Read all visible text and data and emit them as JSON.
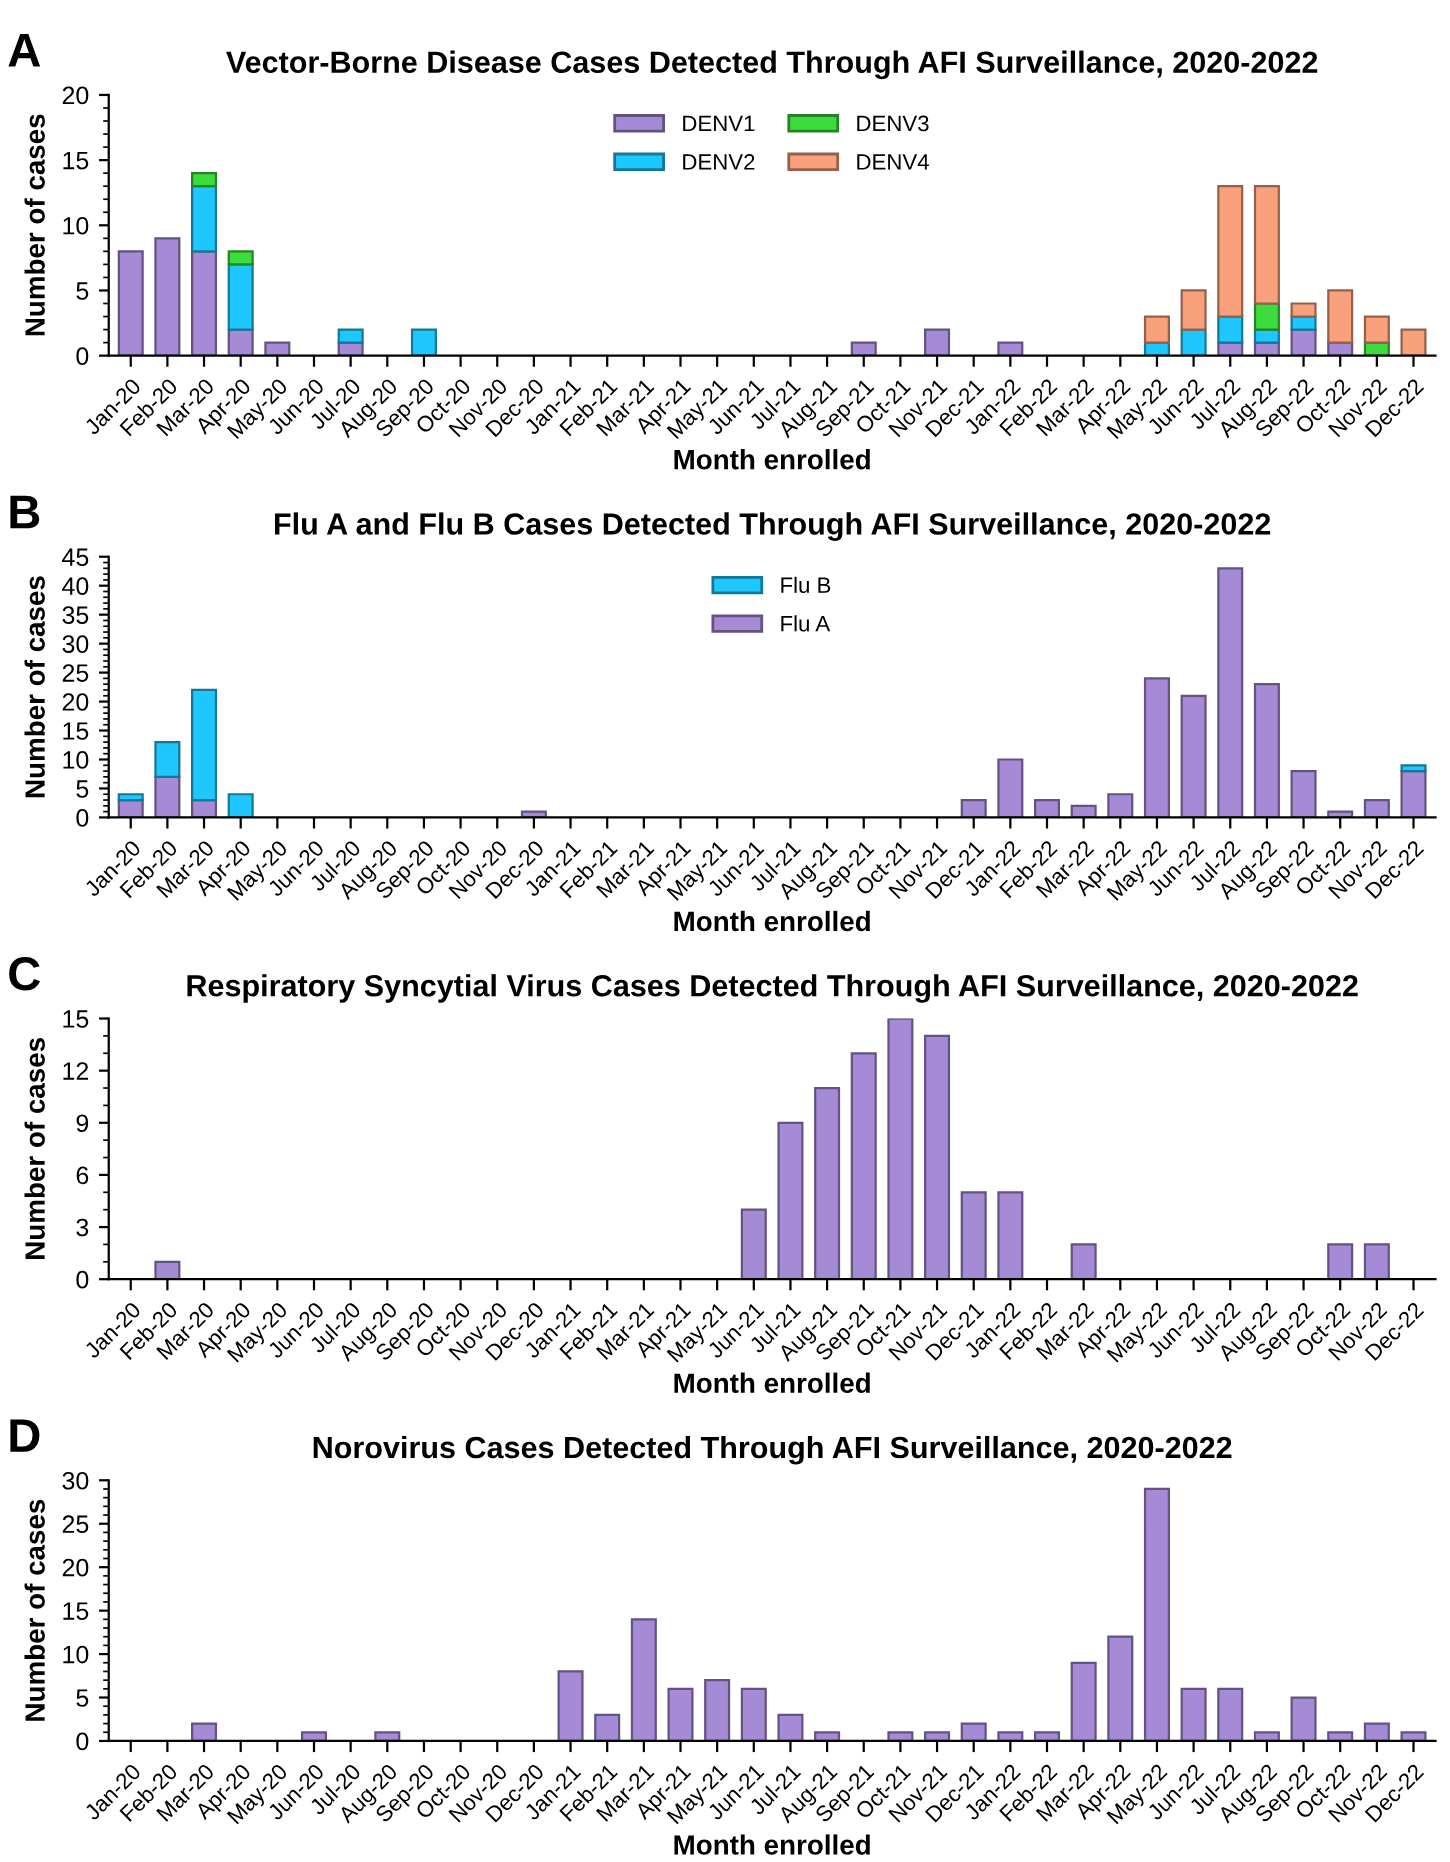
{
  "chart_data": [
    {
      "type": "bar",
      "title": "Vector-Borne Disease Cases Detected Through AFI Surveillance, 2020-2022",
      "xlabel": "Month enrolled",
      "ylabel": "Number of cases",
      "annotations": [
        "A"
      ],
      "stacked": true,
      "legend": "top",
      "grid": false,
      "categories": [
        "Jan-20",
        "Feb-20",
        "Mar-20",
        "Apr-20",
        "May-20",
        "Jun-20",
        "Jul-20",
        "Aug-20",
        "Sep-20",
        "Oct-20",
        "Nov-20",
        "Dec-20",
        "Jan-21",
        "Feb-21",
        "Mar-21",
        "Apr-21",
        "May-21",
        "Jun-21",
        "Jul-21",
        "Aug-21",
        "Sep-21",
        "Oct-21",
        "Nov-21",
        "Dec-21",
        "Jan-22",
        "Feb-22",
        "Mar-22",
        "Apr-22",
        "May-22",
        "Jun-22",
        "Jul-22",
        "Aug-22",
        "Sep-22",
        "Oct-22",
        "Nov-22",
        "Dec-22"
      ],
      "ylim": [
        0,
        20
      ],
      "yticks": [
        0,
        5,
        10,
        15,
        20
      ],
      "series": [
        {
          "name": "DENV1",
          "color": "#a58bd6",
          "values": [
            8,
            9,
            8,
            2,
            1,
            0,
            1,
            0,
            0,
            0,
            0,
            0,
            0,
            0,
            0,
            0,
            0,
            0,
            0,
            0,
            1,
            0,
            2,
            0,
            1,
            0,
            0,
            0,
            0,
            0,
            1,
            1,
            2,
            1,
            0,
            0
          ]
        },
        {
          "name": "DENV2",
          "color": "#1ec8ff",
          "values": [
            0,
            0,
            5,
            5,
            0,
            0,
            1,
            0,
            2,
            0,
            0,
            0,
            0,
            0,
            0,
            0,
            0,
            0,
            0,
            0,
            0,
            0,
            0,
            0,
            0,
            0,
            0,
            0,
            1,
            2,
            2,
            1,
            1,
            0,
            0,
            0
          ]
        },
        {
          "name": "DENV3",
          "color": "#3ddc3d",
          "values": [
            0,
            0,
            1,
            1,
            0,
            0,
            0,
            0,
            0,
            0,
            0,
            0,
            0,
            0,
            0,
            0,
            0,
            0,
            0,
            0,
            0,
            0,
            0,
            0,
            0,
            0,
            0,
            0,
            0,
            0,
            0,
            2,
            0,
            0,
            1,
            0
          ]
        },
        {
          "name": "DENV4",
          "color": "#f9a07c",
          "values": [
            0,
            0,
            0,
            0,
            0,
            0,
            0,
            0,
            0,
            0,
            0,
            0,
            0,
            0,
            0,
            0,
            0,
            0,
            0,
            0,
            0,
            0,
            0,
            0,
            0,
            0,
            0,
            0,
            2,
            3,
            10,
            9,
            1,
            4,
            2,
            2
          ]
        }
      ]
    },
    {
      "type": "bar",
      "title": "Flu A and Flu B Cases Detected Through AFI Surveillance, 2020-2022",
      "xlabel": "Month enrolled",
      "ylabel": "Number of cases",
      "annotations": [
        "B"
      ],
      "stacked": true,
      "legend": "top",
      "grid": false,
      "categories": [
        "Jan-20",
        "Feb-20",
        "Mar-20",
        "Apr-20",
        "May-20",
        "Jun-20",
        "Jul-20",
        "Aug-20",
        "Sep-20",
        "Oct-20",
        "Nov-20",
        "Dec-20",
        "Jan-21",
        "Feb-21",
        "Mar-21",
        "Apr-21",
        "May-21",
        "Jun-21",
        "Jul-21",
        "Aug-21",
        "Sep-21",
        "Oct-21",
        "Nov-21",
        "Dec-21",
        "Jan-22",
        "Feb-22",
        "Mar-22",
        "Apr-22",
        "May-22",
        "Jun-22",
        "Jul-22",
        "Aug-22",
        "Sep-22",
        "Oct-22",
        "Nov-22",
        "Dec-22"
      ],
      "ylim": [
        0,
        45
      ],
      "yticks": [
        0,
        5,
        10,
        15,
        20,
        25,
        30,
        35,
        40,
        45
      ],
      "series": [
        {
          "name": "Flu A",
          "color": "#a58bd6",
          "values": [
            3,
            7,
            3,
            0,
            0,
            0,
            0,
            0,
            0,
            0,
            0,
            1,
            0,
            0,
            0,
            0,
            0,
            0,
            0,
            0,
            0,
            0,
            0,
            3,
            10,
            3,
            2,
            4,
            24,
            21,
            43,
            23,
            8,
            1,
            3,
            8
          ]
        },
        {
          "name": "Flu B",
          "color": "#1ec8ff",
          "values": [
            1,
            6,
            19,
            4,
            0,
            0,
            0,
            0,
            0,
            0,
            0,
            0,
            0,
            0,
            0,
            0,
            0,
            0,
            0,
            0,
            0,
            0,
            0,
            0,
            0,
            0,
            0,
            0,
            0,
            0,
            0,
            0,
            0,
            0,
            0,
            1
          ]
        }
      ]
    },
    {
      "type": "bar",
      "title": "Respiratory Syncytial Virus Cases Detected Through AFI Surveillance, 2020-2022",
      "xlabel": "Month enrolled",
      "ylabel": "Number of cases",
      "annotations": [
        "C"
      ],
      "grid": false,
      "categories": [
        "Jan-20",
        "Feb-20",
        "Mar-20",
        "Apr-20",
        "May-20",
        "Jun-20",
        "Jul-20",
        "Aug-20",
        "Sep-20",
        "Oct-20",
        "Nov-20",
        "Dec-20",
        "Jan-21",
        "Feb-21",
        "Mar-21",
        "Apr-21",
        "May-21",
        "Jun-21",
        "Jul-21",
        "Aug-21",
        "Sep-21",
        "Oct-21",
        "Nov-21",
        "Dec-21",
        "Jan-22",
        "Feb-22",
        "Mar-22",
        "Apr-22",
        "May-22",
        "Jun-22",
        "Jul-22",
        "Aug-22",
        "Sep-22",
        "Oct-22",
        "Nov-22",
        "Dec-22"
      ],
      "ylim": [
        0,
        15
      ],
      "yticks": [
        0,
        3,
        6,
        9,
        12,
        15
      ],
      "series": [
        {
          "color": "#a58bd6",
          "values": [
            0,
            1,
            0,
            0,
            0,
            0,
            0,
            0,
            0,
            0,
            0,
            0,
            0,
            0,
            0,
            0,
            0,
            4,
            9,
            11,
            13,
            15,
            14,
            5,
            5,
            0,
            2,
            0,
            0,
            0,
            0,
            0,
            0,
            2,
            2,
            0
          ]
        }
      ]
    },
    {
      "type": "bar",
      "title": "Norovirus Cases Detected Through AFI Surveillance, 2020-2022",
      "xlabel": "Month enrolled",
      "ylabel": "Number of cases",
      "annotations": [
        "D"
      ],
      "grid": false,
      "categories": [
        "Jan-20",
        "Feb-20",
        "Mar-20",
        "Apr-20",
        "May-20",
        "Jun-20",
        "Jul-20",
        "Aug-20",
        "Sep-20",
        "Oct-20",
        "Nov-20",
        "Dec-20",
        "Jan-21",
        "Feb-21",
        "Mar-21",
        "Apr-21",
        "May-21",
        "Jun-21",
        "Jul-21",
        "Aug-21",
        "Sep-21",
        "Oct-21",
        "Nov-21",
        "Dec-21",
        "Jan-22",
        "Feb-22",
        "Mar-22",
        "Apr-22",
        "May-22",
        "Jun-22",
        "Jul-22",
        "Aug-22",
        "Sep-22",
        "Oct-22",
        "Nov-22",
        "Dec-22"
      ],
      "ylim": [
        0,
        30
      ],
      "yticks": [
        0,
        5,
        10,
        15,
        20,
        25,
        30
      ],
      "series": [
        {
          "color": "#a58bd6",
          "values": [
            0,
            0,
            2,
            0,
            0,
            1,
            0,
            1,
            0,
            0,
            0,
            0,
            8,
            3,
            14,
            6,
            7,
            6,
            3,
            1,
            0,
            1,
            1,
            2,
            1,
            1,
            9,
            12,
            29,
            6,
            6,
            1,
            5,
            1,
            2,
            1
          ]
        }
      ]
    }
  ]
}
